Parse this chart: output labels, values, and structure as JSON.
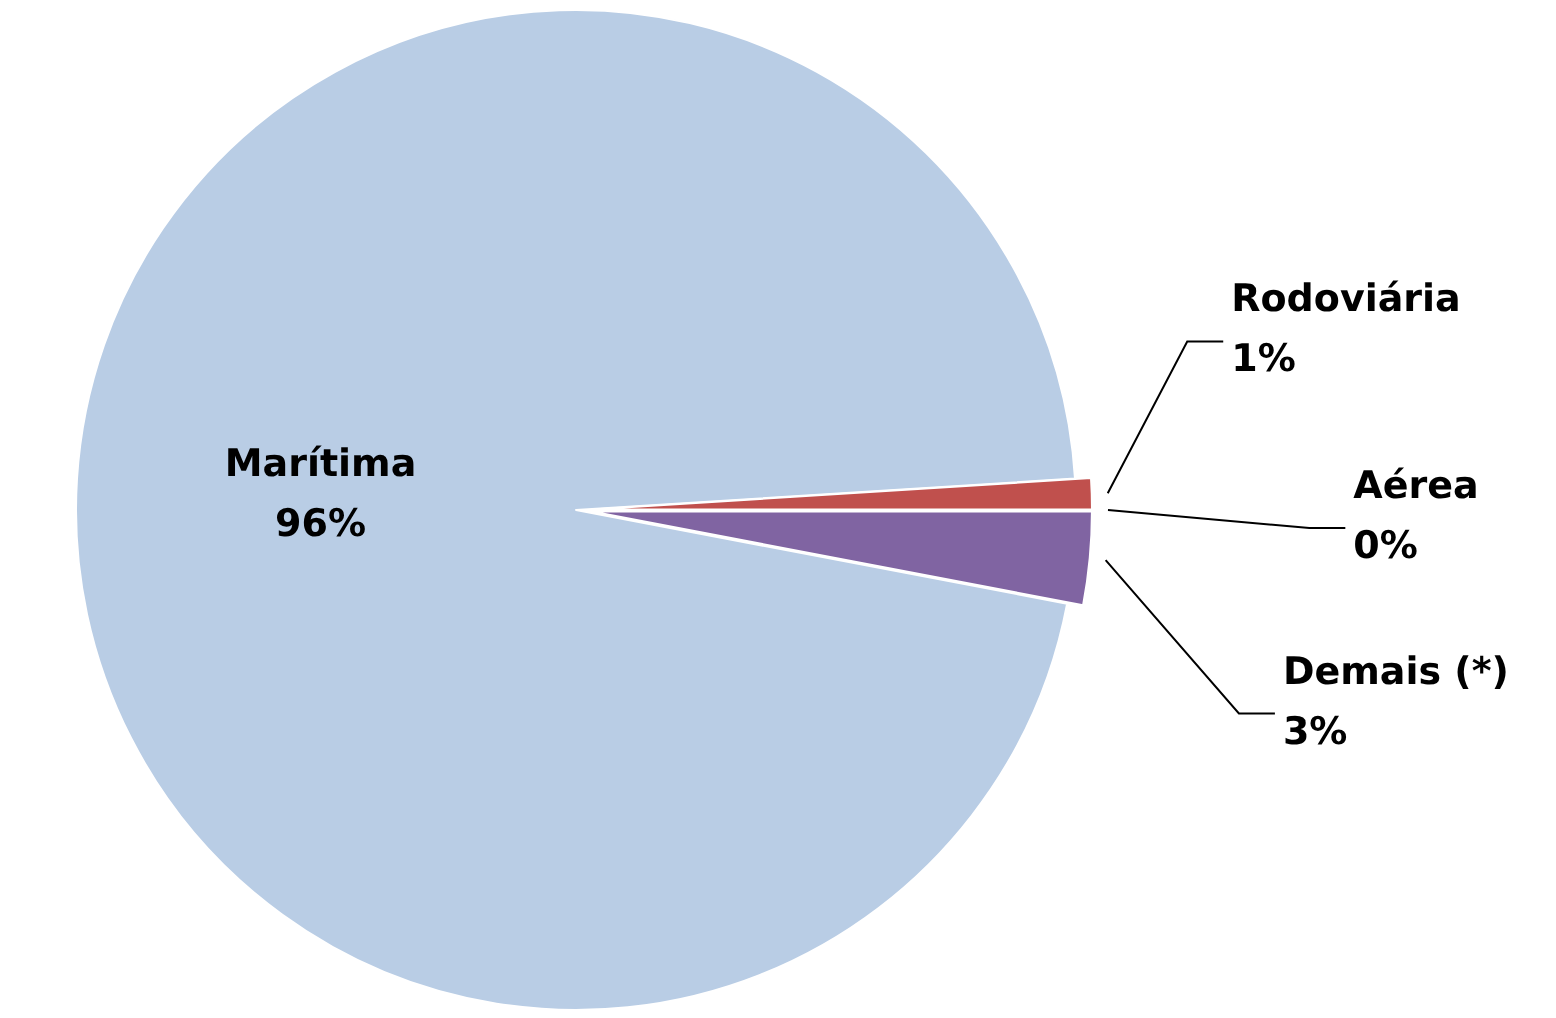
{
  "chart_data": {
    "type": "pie",
    "categories": [
      "Marítima",
      "Rodoviária",
      "Aérea",
      "Demais (*)"
    ],
    "values": [
      96,
      1,
      0,
      3
    ],
    "value_labels": [
      "96%",
      "1%",
      "0%",
      "3%"
    ],
    "colors": [
      "#b9cde5",
      "#c0504d",
      "#9bbb59",
      "#8064a2"
    ],
    "data_labels": true,
    "legend": false
  }
}
